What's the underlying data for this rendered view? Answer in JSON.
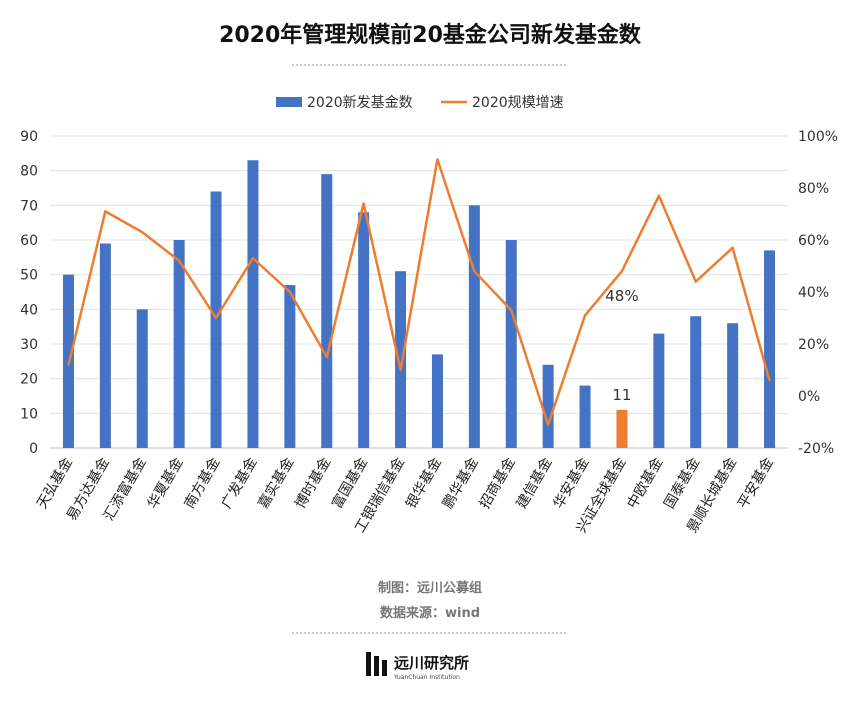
{
  "chart_data": {
    "type": "bar",
    "title": "2020年管理规模前20基金公司新发基金数",
    "categories": [
      "天弘基金",
      "易方达基金",
      "汇添富基金",
      "华夏基金",
      "南方基金",
      "广发基金",
      "嘉实基金",
      "博时基金",
      "富国基金",
      "工银瑞信基金",
      "银华基金",
      "鹏华基金",
      "招商基金",
      "建信基金",
      "华安基金",
      "兴证全球基金",
      "中欧基金",
      "国泰基金",
      "景顺长城基金",
      "平安基金"
    ],
    "series": [
      {
        "name": "2020新发基金数",
        "type": "bar",
        "axis": "left",
        "color": "#4472C4",
        "values": [
          50,
          59,
          40,
          60,
          74,
          83,
          47,
          79,
          68,
          51,
          27,
          70,
          60,
          24,
          18,
          11,
          33,
          38,
          36,
          57
        ]
      },
      {
        "name": "2020规模增速",
        "type": "line",
        "axis": "right",
        "color": "#ED7D31",
        "values": [
          12,
          71,
          63,
          52,
          30,
          53,
          40,
          15,
          74,
          10,
          91,
          48,
          33,
          -11,
          31,
          48,
          77,
          44,
          57,
          6
        ]
      }
    ],
    "highlight": {
      "index": 15,
      "color": "#ED7D31",
      "bar_label": "11",
      "line_label": "48%"
    },
    "y_left": {
      "min": 0,
      "max": 90,
      "ticks": [
        0,
        10,
        20,
        30,
        40,
        50,
        60,
        70,
        80,
        90
      ]
    },
    "y_right": {
      "min": -20,
      "max": 100,
      "ticks": [
        "-20%",
        "0%",
        "20%",
        "40%",
        "60%",
        "80%",
        "100%"
      ]
    },
    "grid": true,
    "legend_position": "top-center"
  },
  "footer": {
    "credit": "制图：远川公募组",
    "source": "数据来源：wind"
  },
  "brand": {
    "name": "远川研究所",
    "subtitle": "YuanChuan Institution"
  }
}
